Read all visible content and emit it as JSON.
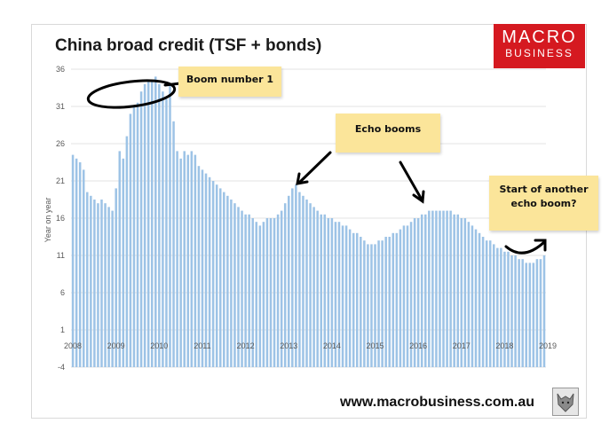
{
  "header": {
    "title": "China broad credit (TSF + bonds)",
    "logo_line1": "MACRO",
    "logo_line2": "BUSINESS"
  },
  "annotations": {
    "boom1": "Boom number 1",
    "echo": "Echo booms",
    "another_line1": "Start of another",
    "another_line2": "echo boom?"
  },
  "footer": {
    "url": "www.macrobusiness.com.au",
    "logo_icon": "wolf-icon"
  },
  "colors": {
    "bar": "#9dc3e6",
    "logo": "#d51920",
    "note": "#fbe59a"
  },
  "chart_data": {
    "type": "bar",
    "title": "China broad credit (TSF + bonds)",
    "ylabel": "Year on year",
    "xlabel": "",
    "ylim": [
      -4,
      36
    ],
    "yticks": [
      -4,
      1,
      6,
      11,
      16,
      21,
      26,
      31,
      36
    ],
    "xticks": [
      "2008",
      "2009",
      "2010",
      "2011",
      "2012",
      "2013",
      "2014",
      "2015",
      "2016",
      "2017",
      "2018",
      "2019"
    ],
    "grid": "horizontal",
    "start": "2008-01",
    "frequency": "monthly",
    "values": [
      24.5,
      24.0,
      23.5,
      22.5,
      19.5,
      19.0,
      18.5,
      18.0,
      18.5,
      18.0,
      17.5,
      17.0,
      20.0,
      25.0,
      24.0,
      27.0,
      30.0,
      31.0,
      31.5,
      33.0,
      34.0,
      34.5,
      34.5,
      35.0,
      34.0,
      33.0,
      32.0,
      34.0,
      29.0,
      25.0,
      24.0,
      25.0,
      24.5,
      25.0,
      24.5,
      23.0,
      22.5,
      22.0,
      21.5,
      21.0,
      20.5,
      20.0,
      19.5,
      19.0,
      18.5,
      18.0,
      17.5,
      17.0,
      16.5,
      16.5,
      16.0,
      15.5,
      15.0,
      15.5,
      16.0,
      16.0,
      16.0,
      16.5,
      17.0,
      18.0,
      19.0,
      20.0,
      20.5,
      19.5,
      19.0,
      18.5,
      18.0,
      17.5,
      17.0,
      16.5,
      16.5,
      16.0,
      16.0,
      15.5,
      15.5,
      15.0,
      15.0,
      14.5,
      14.0,
      14.0,
      13.5,
      13.0,
      12.5,
      12.5,
      12.5,
      13.0,
      13.0,
      13.5,
      13.5,
      14.0,
      14.0,
      14.5,
      15.0,
      15.0,
      15.5,
      16.0,
      16.0,
      16.5,
      16.5,
      17.0,
      17.0,
      17.0,
      17.0,
      17.0,
      17.0,
      17.0,
      16.5,
      16.5,
      16.0,
      16.0,
      15.5,
      15.0,
      14.5,
      14.0,
      13.5,
      13.0,
      13.0,
      12.5,
      12.0,
      12.0,
      11.5,
      11.5,
      11.0,
      11.0,
      10.5,
      10.5,
      10.0,
      10.0,
      10.0,
      10.5,
      10.5,
      11.0
    ]
  }
}
